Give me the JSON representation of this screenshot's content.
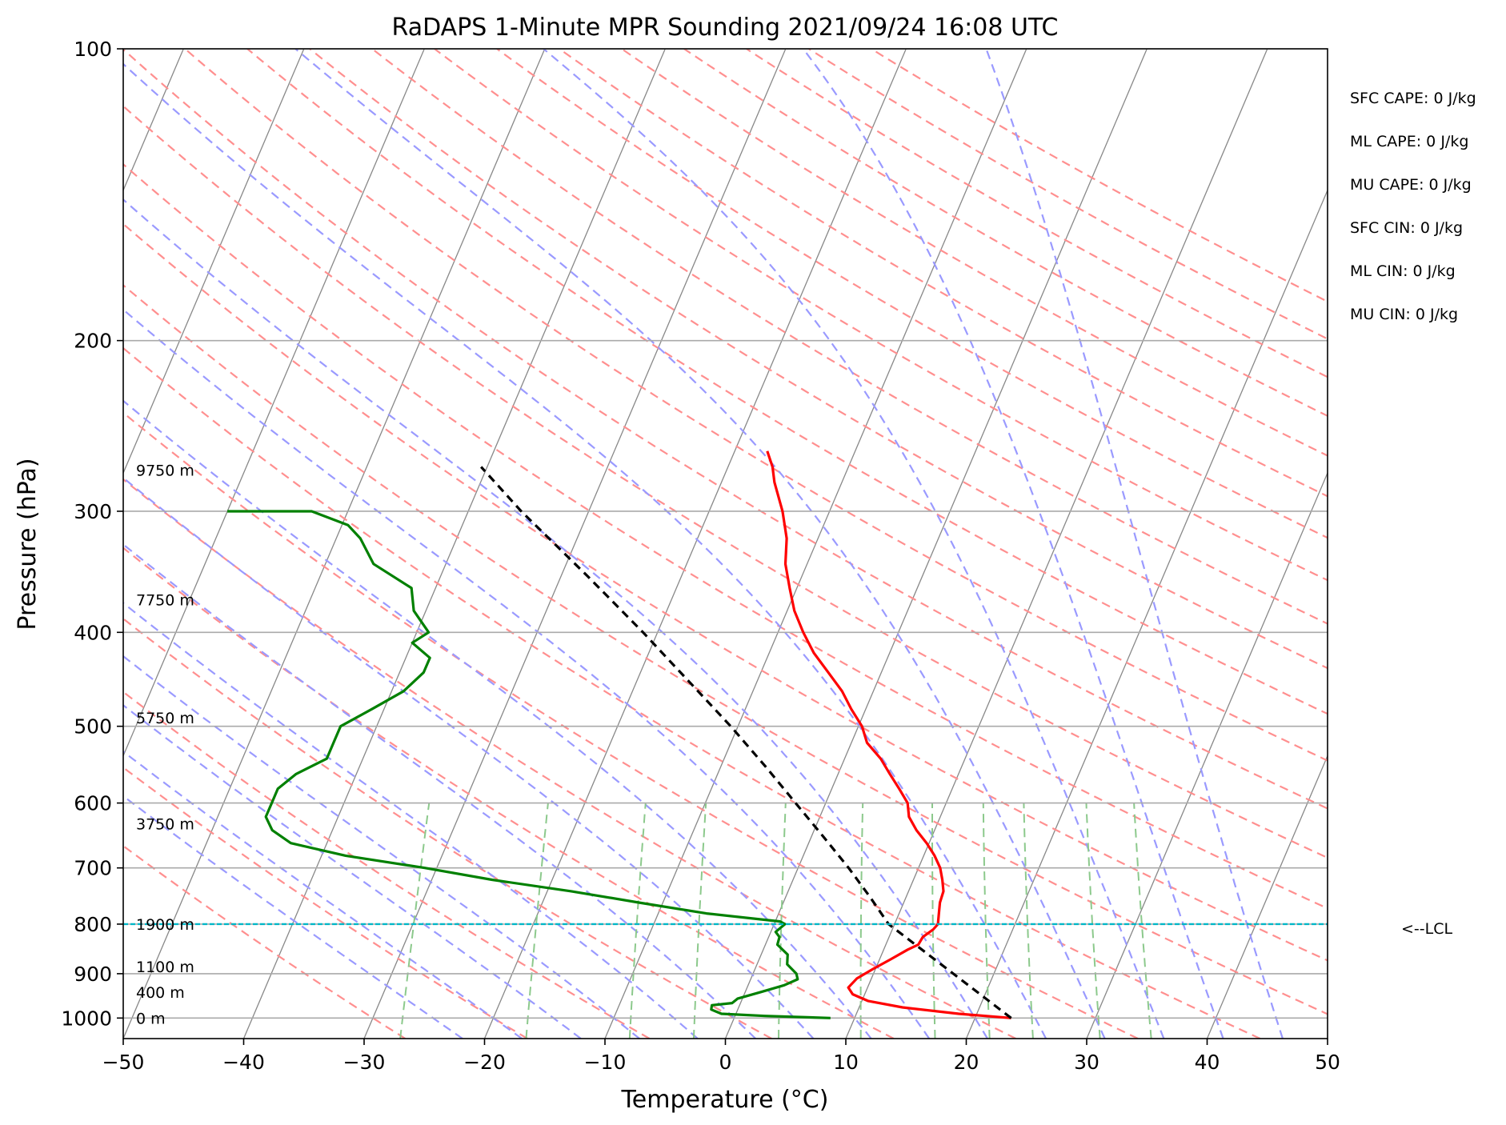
{
  "chart_data": {
    "type": "line",
    "title": "RaDAPS 1-Minute MPR Sounding 2021/09/24 16:08 UTC",
    "xlabel": "Temperature (°C)",
    "ylabel": "Pressure (hPa)",
    "xlim": [
      -50,
      50
    ],
    "ylim": [
      1050,
      100
    ],
    "x_ticks": [
      -50,
      -40,
      -30,
      -20,
      -10,
      0,
      10,
      20,
      30,
      40,
      50
    ],
    "x_tick_labels": [
      "−50",
      "−40",
      "−30",
      "−20",
      "−10",
      "0",
      "10",
      "20",
      "30",
      "40",
      "50"
    ],
    "y_ticks": [
      1000,
      900,
      800,
      700,
      600,
      500,
      400,
      300,
      200,
      100
    ],
    "y_tick_labels": [
      "1000",
      "900",
      "800",
      "700",
      "600",
      "500",
      "400",
      "300",
      "200",
      "100"
    ],
    "y_scale": "log",
    "grid": true,
    "series": [
      {
        "key": "temperature",
        "color": "#ff0000",
        "points": [
          [
            1000,
            23.0
          ],
          [
            990,
            18.5
          ],
          [
            975,
            13.6
          ],
          [
            960,
            10.5
          ],
          [
            945,
            9.0
          ],
          [
            930,
            8.4
          ],
          [
            910,
            8.8
          ],
          [
            890,
            9.8
          ],
          [
            870,
            10.9
          ],
          [
            850,
            12.0
          ],
          [
            840,
            12.7
          ],
          [
            825,
            12.8
          ],
          [
            810,
            13.4
          ],
          [
            800,
            13.6
          ],
          [
            780,
            13.3
          ],
          [
            760,
            13.0
          ],
          [
            740,
            12.9
          ],
          [
            720,
            12.4
          ],
          [
            700,
            11.8
          ],
          [
            680,
            10.9
          ],
          [
            660,
            9.8
          ],
          [
            640,
            8.5
          ],
          [
            620,
            7.4
          ],
          [
            600,
            6.8
          ],
          [
            580,
            5.6
          ],
          [
            560,
            4.3
          ],
          [
            540,
            3.0
          ],
          [
            520,
            1.3
          ],
          [
            500,
            0.3
          ],
          [
            480,
            -1.2
          ],
          [
            460,
            -2.6
          ],
          [
            440,
            -4.4
          ],
          [
            420,
            -6.3
          ],
          [
            400,
            -7.9
          ],
          [
            380,
            -9.4
          ],
          [
            360,
            -10.6
          ],
          [
            340,
            -11.8
          ],
          [
            320,
            -12.6
          ],
          [
            300,
            -13.9
          ],
          [
            280,
            -15.6
          ],
          [
            270,
            -16.3
          ],
          [
            260,
            -17.3
          ]
        ]
      },
      {
        "key": "dewpoint",
        "color": "#008000",
        "points": [
          [
            1000,
            8.0
          ],
          [
            995,
            2.5
          ],
          [
            990,
            -1.2
          ],
          [
            980,
            -2.2
          ],
          [
            970,
            -2.3
          ],
          [
            965,
            -0.7
          ],
          [
            955,
            -0.4
          ],
          [
            940,
            1.3
          ],
          [
            925,
            3.0
          ],
          [
            912,
            3.9
          ],
          [
            900,
            3.6
          ],
          [
            880,
            2.5
          ],
          [
            860,
            2.2
          ],
          [
            840,
            1.0
          ],
          [
            825,
            0.9
          ],
          [
            815,
            0.4
          ],
          [
            800,
            0.9
          ],
          [
            795,
            0.4
          ],
          [
            780,
            -6.0
          ],
          [
            760,
            -12.0
          ],
          [
            740,
            -18.0
          ],
          [
            720,
            -25.0
          ],
          [
            700,
            -31.0
          ],
          [
            680,
            -38.0
          ],
          [
            660,
            -43.0
          ],
          [
            640,
            -45.0
          ],
          [
            620,
            -46.0
          ],
          [
            600,
            -46.0
          ],
          [
            580,
            -46.0
          ],
          [
            560,
            -45.0
          ],
          [
            540,
            -43.0
          ],
          [
            520,
            -43.0
          ],
          [
            500,
            -43.0
          ],
          [
            480,
            -41.0
          ],
          [
            460,
            -39.0
          ],
          [
            440,
            -38.0
          ],
          [
            425,
            -38.0
          ],
          [
            410,
            -40.0
          ],
          [
            400,
            -39.0
          ],
          [
            380,
            -41.0
          ],
          [
            360,
            -42.0
          ],
          [
            340,
            -46.0
          ],
          [
            320,
            -48.0
          ],
          [
            310,
            -49.5
          ],
          [
            300,
            -53.0
          ],
          [
            300,
            -60.0
          ]
        ]
      },
      {
        "key": "parcel",
        "color": "#000000",
        "points": [
          [
            1000,
            23.0
          ],
          [
            800,
            9.5
          ],
          [
            750,
            7.0
          ],
          [
            700,
            4.2
          ],
          [
            650,
            1.0
          ],
          [
            600,
            -2.5
          ],
          [
            550,
            -6.3
          ],
          [
            500,
            -10.6
          ],
          [
            450,
            -15.6
          ],
          [
            400,
            -21.2
          ],
          [
            350,
            -27.8
          ],
          [
            300,
            -35.6
          ],
          [
            270,
            -40.5
          ]
        ]
      }
    ],
    "height_labels": [
      {
        "p": 1000,
        "text": "0 m"
      },
      {
        "p": 940,
        "text": "400 m"
      },
      {
        "p": 885,
        "text": "1100 m"
      },
      {
        "p": 800,
        "text": "1900 m"
      },
      {
        "p": 630,
        "text": "3750 m"
      },
      {
        "p": 490,
        "text": "5750 m"
      },
      {
        "p": 370,
        "text": "7750 m"
      },
      {
        "p": 272,
        "text": "9750 m"
      }
    ],
    "lcl": {
      "p": 800,
      "label": "<--LCL",
      "color": "#00b7c7"
    },
    "indices": [
      "SFC CAPE: 0 J/kg",
      "ML CAPE: 0 J/kg",
      "MU CAPE: 0 J/kg",
      "SFC CIN: 0 J/kg",
      "ML CIN: 0 J/kg",
      "MU CIN: 0 J/kg"
    ],
    "background_lines": {
      "dry_adiabat_color": "#ff8f8f",
      "moist_adiabat_color": "#9a9aff",
      "mixing_ratio_color": "#8cc98c",
      "isotherm_color": "#888888"
    }
  }
}
